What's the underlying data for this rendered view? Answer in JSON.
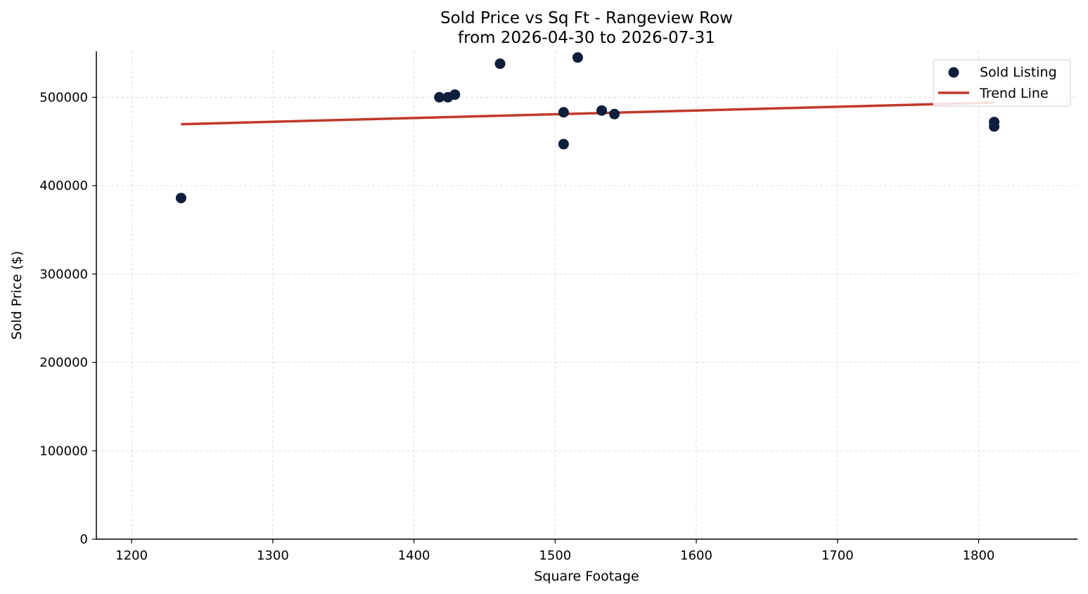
{
  "chart_data": {
    "type": "scatter",
    "title": "Sold Price vs Sq Ft - Rangeview Row",
    "subtitle": "from 2026-04-30 to 2026-07-31",
    "xlabel": "Square Footage",
    "ylabel": "Sold Price ($)",
    "xlim": [
      1175,
      1870
    ],
    "ylim": [
      0,
      552000
    ],
    "xticks": [
      1200,
      1300,
      1400,
      1500,
      1600,
      1700,
      1800
    ],
    "yticks": [
      0,
      100000,
      200000,
      300000,
      400000,
      500000
    ],
    "xtick_labels": [
      "1200",
      "1300",
      "1400",
      "1500",
      "1600",
      "1700",
      "1800"
    ],
    "ytick_labels": [
      "0",
      "100000",
      "200000",
      "300000",
      "400000",
      "500000"
    ],
    "grid": true,
    "legend_position": "top-right",
    "series": [
      {
        "name": "Sold Listing",
        "kind": "scatter",
        "color": "#0d1f3c",
        "points": [
          {
            "x": 1235,
            "y": 386000
          },
          {
            "x": 1418,
            "y": 500000
          },
          {
            "x": 1424,
            "y": 500000
          },
          {
            "x": 1429,
            "y": 503000
          },
          {
            "x": 1461,
            "y": 538000
          },
          {
            "x": 1506,
            "y": 483000
          },
          {
            "x": 1506,
            "y": 447000
          },
          {
            "x": 1516,
            "y": 545000
          },
          {
            "x": 1533,
            "y": 485000
          },
          {
            "x": 1542,
            "y": 481000
          },
          {
            "x": 1811,
            "y": 472000
          },
          {
            "x": 1811,
            "y": 467000
          }
        ]
      },
      {
        "name": "Trend Line",
        "kind": "line",
        "color": "#c0392b",
        "points": [
          {
            "x": 1235,
            "y": 469500
          },
          {
            "x": 1811,
            "y": 494000
          }
        ]
      }
    ]
  }
}
